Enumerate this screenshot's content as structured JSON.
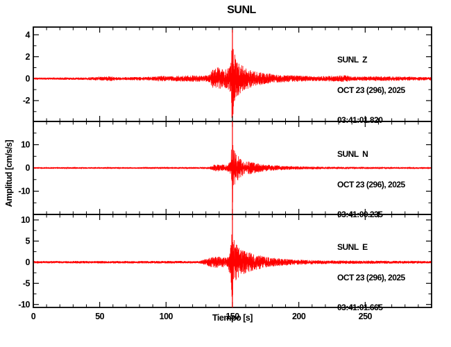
{
  "title": "SUNL",
  "colors": {
    "trace": "#ff0000",
    "axis": "#000000",
    "background": "#ffffff"
  },
  "chart_data": {
    "type": "line",
    "title": "SUNL",
    "xlabel": "Tiempo [s]",
    "ylabel": "Amplitud [cm/s/s]",
    "xlim": [
      0,
      300
    ],
    "xticks_major": [
      0,
      50,
      100,
      150,
      200,
      250
    ],
    "xtick_minor_step": 10,
    "grid": false,
    "legend": "none",
    "panels": [
      {
        "id": "Z",
        "label": "SUNL  Z",
        "date": "OCT 23 (296), 2025",
        "time": "03:41:01.820",
        "ylim": [
          -3.9,
          4.7
        ],
        "yticks_major": [
          4,
          2,
          0,
          -2
        ],
        "ytick_minor_step": 1,
        "event_time_s": 150,
        "peak_amplitude": 4.45,
        "trough_amplitude": -3.4,
        "envelope": [
          [
            0,
            0.1
          ],
          [
            40,
            0.12
          ],
          [
            58,
            0.22
          ],
          [
            63,
            0.14
          ],
          [
            75,
            0.15
          ],
          [
            90,
            0.18
          ],
          [
            97,
            0.28
          ],
          [
            102,
            0.2
          ],
          [
            110,
            0.28
          ],
          [
            120,
            0.3
          ],
          [
            128,
            0.28
          ],
          [
            133,
            0.35
          ],
          [
            135,
            0.9
          ],
          [
            138,
            1.05
          ],
          [
            146,
            0.85
          ],
          [
            148.5,
            1.6
          ],
          [
            150,
            4.4
          ],
          [
            151,
            2.6
          ],
          [
            153,
            1.7
          ],
          [
            156,
            1.35
          ],
          [
            160,
            1.0
          ],
          [
            166,
            0.75
          ],
          [
            173,
            0.55
          ],
          [
            182,
            0.4
          ],
          [
            195,
            0.3
          ],
          [
            215,
            0.22
          ],
          [
            236,
            0.32
          ],
          [
            240,
            0.18
          ],
          [
            262,
            0.22
          ],
          [
            299,
            0.15
          ]
        ]
      },
      {
        "id": "N",
        "label": "SUNL  N",
        "date": "OCT 23 (296), 2025",
        "time": "03:41:00.235",
        "ylim": [
          -20,
          20
        ],
        "yticks_major": [
          10,
          0,
          -10
        ],
        "ytick_minor_step": 5,
        "event_time_s": 150,
        "peak_amplitude": 20,
        "trough_amplitude": -20,
        "envelope": [
          [
            0,
            0.35
          ],
          [
            120,
            0.4
          ],
          [
            133,
            0.45
          ],
          [
            136,
            1.4
          ],
          [
            140,
            1.5
          ],
          [
            146,
            1.3
          ],
          [
            148.5,
            3.2
          ],
          [
            150,
            19.5
          ],
          [
            151,
            9
          ],
          [
            152.5,
            6.5
          ],
          [
            155,
            4.8
          ],
          [
            158,
            3.6
          ],
          [
            163,
            2.7
          ],
          [
            169,
            2.0
          ],
          [
            176,
            1.4
          ],
          [
            186,
            1.0
          ],
          [
            200,
            0.7
          ],
          [
            225,
            0.5
          ],
          [
            299,
            0.4
          ]
        ]
      },
      {
        "id": "E",
        "label": "SUNL  E",
        "date": "OCT 23 (296), 2025",
        "time": "03:41:01.665",
        "ylim": [
          -10.7,
          11.3
        ],
        "yticks_major": [
          10,
          5,
          0,
          -5,
          -10
        ],
        "ytick_minor_step": 2.5,
        "event_time_s": 150,
        "peak_amplitude": 11.2,
        "trough_amplitude": -12.5,
        "envelope": [
          [
            0,
            0.28
          ],
          [
            100,
            0.3
          ],
          [
            125,
            0.3
          ],
          [
            129,
            0.7
          ],
          [
            133,
            1.1
          ],
          [
            137,
            1.35
          ],
          [
            141,
            1.3
          ],
          [
            146,
            1.05
          ],
          [
            148.5,
            3.2
          ],
          [
            150,
            11.2
          ],
          [
            151,
            6.2
          ],
          [
            153,
            4.3
          ],
          [
            156,
            3.2
          ],
          [
            160,
            2.6
          ],
          [
            165,
            2.1
          ],
          [
            170,
            1.8
          ],
          [
            176,
            1.3
          ],
          [
            184,
            0.95
          ],
          [
            195,
            0.65
          ],
          [
            215,
            0.45
          ],
          [
            245,
            0.38
          ],
          [
            299,
            0.32
          ]
        ]
      }
    ]
  }
}
